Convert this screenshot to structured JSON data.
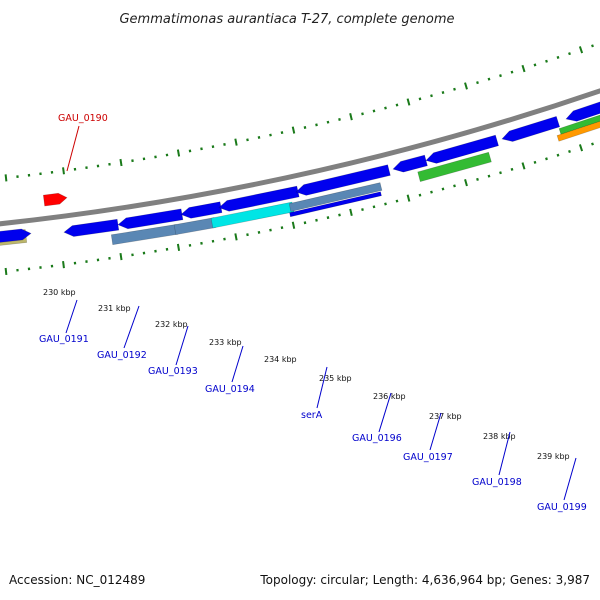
{
  "title": "Gemmatimonas aurantiaca T-27, complete genome",
  "footer": {
    "accession": "Accession: NC_012489",
    "summary": "Topology: circular; Length: 4,636,964 bp; Genes: 3,987"
  },
  "colors": {
    "backbone": "#808080",
    "tick": "#1a7a1a",
    "gene_label": "#0000cc",
    "highlight_label": "#cc0000",
    "red_feature": "#ff0000",
    "blue_feature": "#0000ee",
    "steel_feature": "#5a87b4",
    "cyan_feature": "#00e5e5",
    "green_feature": "#33bb33",
    "orange_feature": "#ff9900",
    "khaki_feature": "#bdb76b"
  },
  "scale_labels": [
    "230 kbp",
    "231 kbp",
    "232 kbp",
    "233 kbp",
    "234 kbp",
    "235 kbp",
    "236 kbp",
    "237 kbp",
    "238 kbp",
    "239 kbp"
  ],
  "gene_labels": [
    {
      "text": "GAU_0190",
      "role": "highlight"
    },
    {
      "text": "GAU_0191",
      "role": "gene"
    },
    {
      "text": "GAU_0192",
      "role": "gene"
    },
    {
      "text": "GAU_0193",
      "role": "gene"
    },
    {
      "text": "GAU_0194",
      "role": "gene"
    },
    {
      "text": "serA",
      "role": "gene"
    },
    {
      "text": "GAU_0196",
      "role": "gene"
    },
    {
      "text": "GAU_0197",
      "role": "gene"
    },
    {
      "text": "GAU_0198",
      "role": "gene"
    },
    {
      "text": "GAU_0199",
      "role": "gene"
    }
  ]
}
